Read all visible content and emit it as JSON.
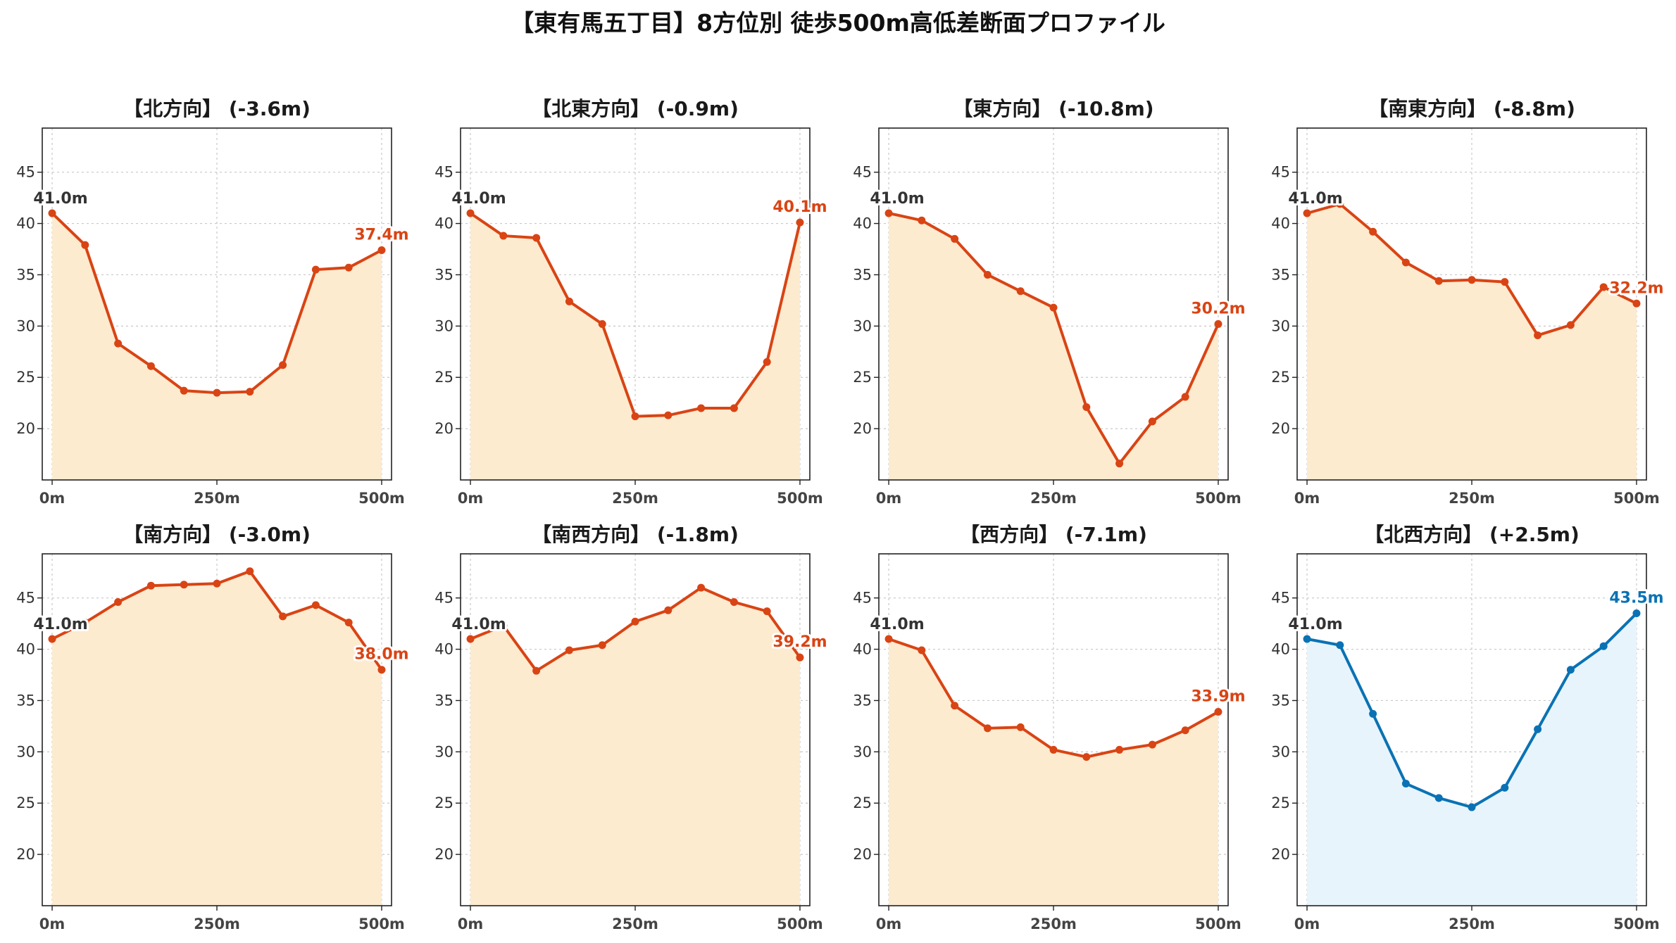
{
  "title": "【東有馬五丁目】8方位別 徒歩500m高低差断面プロファイル",
  "colors": {
    "down_line": "#d94414",
    "down_fill": "#fdebd0",
    "up_line": "#0a72b4",
    "up_fill": "#e8f4fb",
    "start_label": "#333333",
    "grid": "#c8c8c8"
  },
  "chart_data": [
    {
      "type": "area",
      "title": "【北方向】 (-3.6m)",
      "trend": "down",
      "x": [
        0,
        50,
        100,
        150,
        200,
        250,
        300,
        350,
        400,
        450,
        500
      ],
      "y": [
        41.0,
        37.9,
        28.3,
        26.1,
        23.7,
        23.5,
        23.6,
        26.2,
        35.5,
        35.7,
        37.4
      ],
      "start_label": "41.0m",
      "end_label": "37.4m",
      "xticks": [
        "0m",
        "250m",
        "500m"
      ],
      "yticks": [
        "20",
        "25",
        "30",
        "35",
        "40",
        "45"
      ],
      "xlim": [
        -15,
        515
      ],
      "ylim": [
        15,
        49.3
      ],
      "grid": true
    },
    {
      "type": "area",
      "title": "【北東方向】 (-0.9m)",
      "trend": "down",
      "x": [
        0,
        50,
        100,
        150,
        200,
        250,
        300,
        350,
        400,
        450,
        500
      ],
      "y": [
        41.0,
        38.8,
        38.6,
        32.4,
        30.2,
        21.2,
        21.3,
        22.0,
        22.0,
        26.5,
        40.1
      ],
      "start_label": "41.0m",
      "end_label": "40.1m",
      "xticks": [
        "0m",
        "250m",
        "500m"
      ],
      "yticks": [
        "20",
        "25",
        "30",
        "35",
        "40",
        "45"
      ],
      "xlim": [
        -15,
        515
      ],
      "ylim": [
        15,
        49.3
      ],
      "grid": true
    },
    {
      "type": "area",
      "title": "【東方向】 (-10.8m)",
      "trend": "down",
      "x": [
        0,
        50,
        100,
        150,
        200,
        250,
        300,
        350,
        400,
        450,
        500
      ],
      "y": [
        41.0,
        40.3,
        38.5,
        35.0,
        33.4,
        31.8,
        22.1,
        16.6,
        20.7,
        23.1,
        30.2
      ],
      "start_label": "41.0m",
      "end_label": "30.2m",
      "xticks": [
        "0m",
        "250m",
        "500m"
      ],
      "yticks": [
        "20",
        "25",
        "30",
        "35",
        "40",
        "45"
      ],
      "xlim": [
        -15,
        515
      ],
      "ylim": [
        15,
        49.3
      ],
      "grid": true
    },
    {
      "type": "area",
      "title": "【南東方向】 (-8.8m)",
      "trend": "down",
      "x": [
        0,
        50,
        100,
        150,
        200,
        250,
        300,
        350,
        400,
        450,
        500
      ],
      "y": [
        41.0,
        41.9,
        39.2,
        36.2,
        34.4,
        34.5,
        34.3,
        29.1,
        30.1,
        33.8,
        32.2
      ],
      "start_label": "41.0m",
      "end_label": "32.2m",
      "xticks": [
        "0m",
        "250m",
        "500m"
      ],
      "yticks": [
        "20",
        "25",
        "30",
        "35",
        "40",
        "45"
      ],
      "xlim": [
        -15,
        515
      ],
      "ylim": [
        15,
        49.3
      ],
      "grid": true
    },
    {
      "type": "area",
      "title": "【南方向】 (-3.0m)",
      "trend": "down",
      "x": [
        0,
        50,
        100,
        150,
        200,
        250,
        300,
        350,
        400,
        450,
        500
      ],
      "y": [
        41.0,
        42.6,
        44.6,
        46.2,
        46.3,
        46.4,
        47.6,
        43.2,
        44.3,
        42.6,
        38.0
      ],
      "start_label": "41.0m",
      "end_label": "38.0m",
      "xticks": [
        "0m",
        "250m",
        "500m"
      ],
      "yticks": [
        "20",
        "25",
        "30",
        "35",
        "40",
        "45"
      ],
      "xlim": [
        -15,
        515
      ],
      "ylim": [
        15,
        49.3
      ],
      "grid": true
    },
    {
      "type": "area",
      "title": "【南西方向】 (-1.8m)",
      "trend": "down",
      "x": [
        0,
        50,
        100,
        150,
        200,
        250,
        300,
        350,
        400,
        450,
        500
      ],
      "y": [
        41.0,
        42.3,
        37.9,
        39.9,
        40.4,
        42.7,
        43.8,
        46.0,
        44.6,
        43.7,
        39.2
      ],
      "start_label": "41.0m",
      "end_label": "39.2m",
      "xticks": [
        "0m",
        "250m",
        "500m"
      ],
      "yticks": [
        "20",
        "25",
        "30",
        "35",
        "40",
        "45"
      ],
      "xlim": [
        -15,
        515
      ],
      "ylim": [
        15,
        49.3
      ],
      "grid": true
    },
    {
      "type": "area",
      "title": "【西方向】 (-7.1m)",
      "trend": "down",
      "x": [
        0,
        50,
        100,
        150,
        200,
        250,
        300,
        350,
        400,
        450,
        500
      ],
      "y": [
        41.0,
        39.9,
        34.5,
        32.3,
        32.4,
        30.2,
        29.5,
        30.2,
        30.7,
        32.1,
        33.9
      ],
      "start_label": "41.0m",
      "end_label": "33.9m",
      "xticks": [
        "0m",
        "250m",
        "500m"
      ],
      "yticks": [
        "20",
        "25",
        "30",
        "35",
        "40",
        "45"
      ],
      "xlim": [
        -15,
        515
      ],
      "ylim": [
        15,
        49.3
      ],
      "grid": true
    },
    {
      "type": "area",
      "title": "【北西方向】 (+2.5m)",
      "trend": "up",
      "x": [
        0,
        50,
        100,
        150,
        200,
        250,
        300,
        350,
        400,
        450,
        500
      ],
      "y": [
        41.0,
        40.4,
        33.7,
        26.9,
        25.5,
        24.6,
        26.5,
        32.2,
        38.0,
        40.3,
        43.5
      ],
      "start_label": "41.0m",
      "end_label": "43.5m",
      "xticks": [
        "0m",
        "250m",
        "500m"
      ],
      "yticks": [
        "20",
        "25",
        "30",
        "35",
        "40",
        "45"
      ],
      "xlim": [
        -15,
        515
      ],
      "ylim": [
        15,
        49.3
      ],
      "grid": true
    }
  ]
}
